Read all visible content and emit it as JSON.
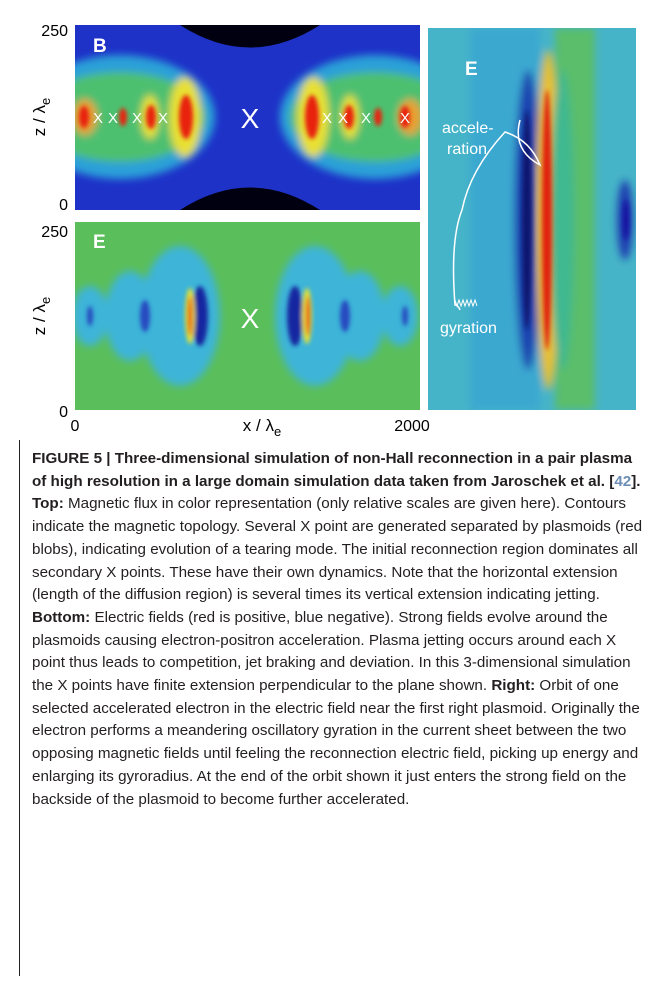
{
  "figure": {
    "top_panel": {
      "label": "B",
      "ytick_top": "250",
      "ytick_bottom": "0",
      "ylabel": {
        "main": "z / λ",
        "sub": "e"
      },
      "center_x": "X",
      "small_x": [
        "X",
        "X",
        "X",
        "X",
        "X",
        "X",
        "X",
        "X"
      ]
    },
    "bottom_panel": {
      "label": "E",
      "ytick_top": "250",
      "ytick_bottom": "0",
      "ylabel": {
        "main": "z / λ",
        "sub": "e"
      },
      "center_x": "X",
      "xtick_left": "0",
      "xtick_right": "2000",
      "xlabel": {
        "main": "x / λ",
        "sub": "e"
      }
    },
    "right_panel": {
      "label": "E",
      "annotation_line1": "accele-",
      "annotation_line2": "ration",
      "annotation_gyration": "gyration"
    }
  },
  "caption": {
    "title_start": "FIGURE 5 | Three-dimensional simulation of non-Hall reconnection in a pair plasma of high resolution in a large domain simulation data taken from Jaroschek et al. [",
    "ref": "42",
    "title_end": "].",
    "sections": [
      {
        "heading": "Top:",
        "text": "Magnetic flux in color representation (only relative scales are given here). Contours indicate the magnetic topology. Several X point are generated separated by plasmoids (red blobs), indicating evolution of a tearing mode. The initial reconnection region dominates all secondary X points. These have their own dynamics. Note that the horizontal extension (length of the diffusion region) is several times its vertical extension indicating jetting."
      },
      {
        "heading": "Bottom:",
        "text": "Electric fields (red is positive, blue negative). Strong fields evolve around the plasmoids causing electron-positron acceleration. Plasma jetting occurs around each X point thus leads to competition, jet braking and deviation. In this 3-dimensional simulation the X points have finite extension perpendicular to the plane shown."
      },
      {
        "heading": "Right:",
        "text": "Orbit of one selected accelerated electron in the electric field near the first right plasmoid. Originally the electron performs a meandering oscillatory gyration in the current sheet between the two opposing magnetic fields until feeling the reconnection electric field, picking up energy and enlarging its gyroradius. At the end of the orbit shown it just enters the strong field on the backside of the plasmoid to become further accelerated."
      }
    ]
  }
}
